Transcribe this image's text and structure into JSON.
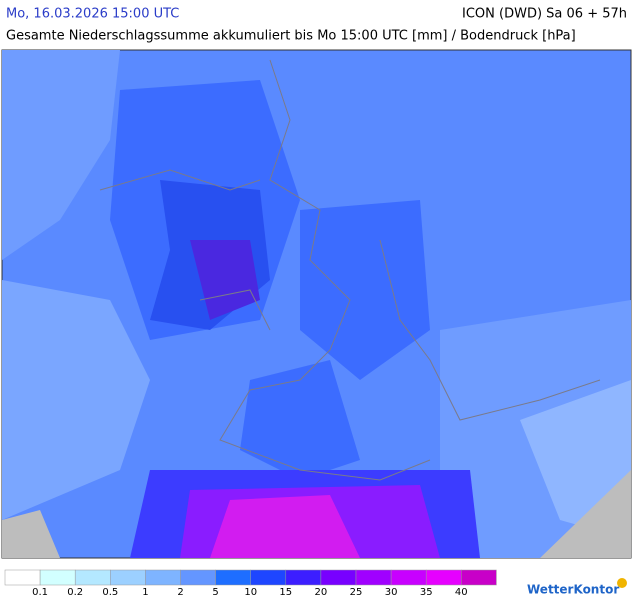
{
  "header": {
    "title": "Mo, 16.03.2026 15:00 UTC",
    "model": "ICON (DWD) Sa 06 + 57h",
    "subtitle": "Gesamte Niederschlagssumme akkumuliert bis Mo 15:00 UTC [mm] / Bodendruck [hPa]"
  },
  "legend": {
    "colors": [
      "#ffffff",
      "#d2ffff",
      "#b4e8ff",
      "#9cd0ff",
      "#7eb4ff",
      "#6496ff",
      "#1e6eff",
      "#1e46ff",
      "#3c1eff",
      "#7800ff",
      "#a000ff",
      "#c800ff",
      "#e600ff",
      "#c800c8"
    ],
    "labels": [
      0.1,
      0.2,
      0.5,
      1,
      2,
      5,
      10,
      15,
      20,
      25,
      30,
      35,
      40
    ]
  },
  "logo": "WetterKontor"
}
